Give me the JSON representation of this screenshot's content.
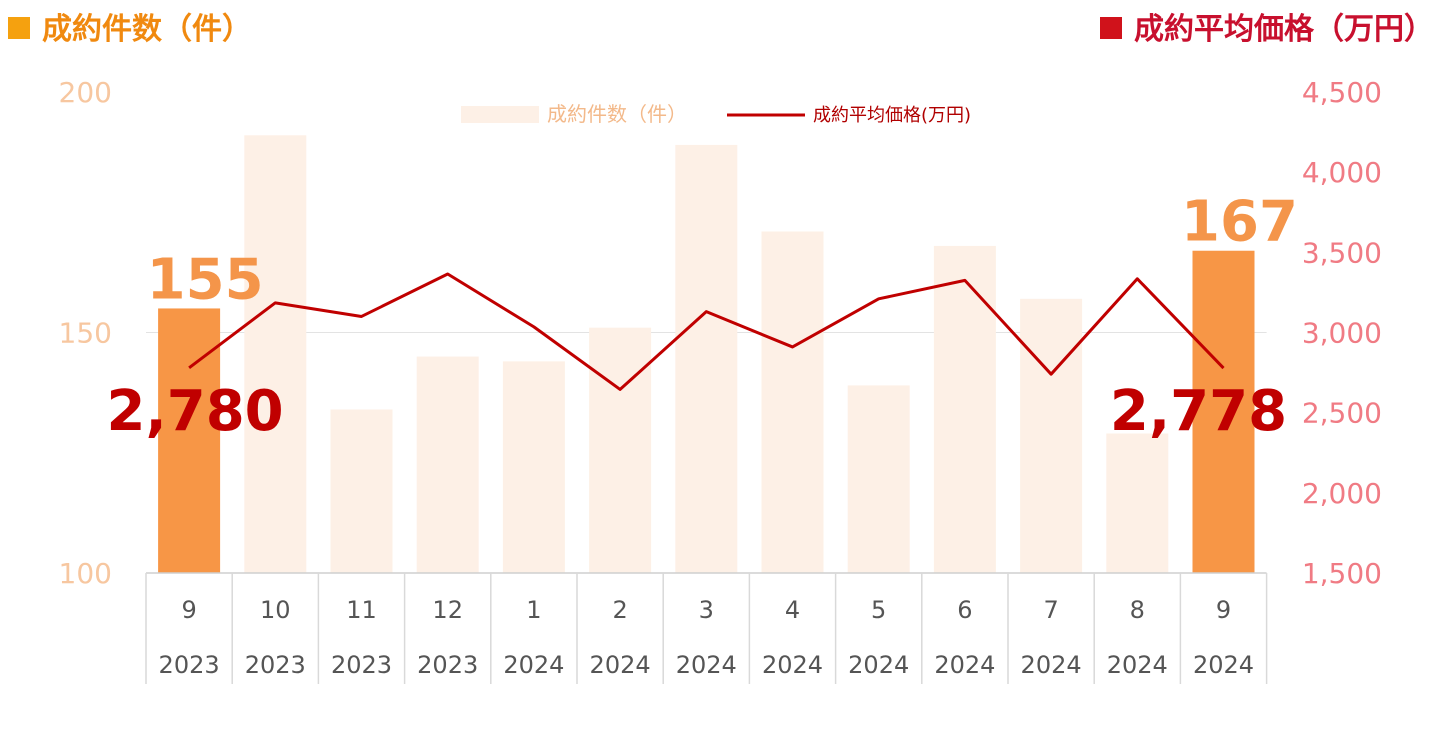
{
  "titles": {
    "left": "成約件数（件）",
    "right": "成約平均価格（万円）"
  },
  "colors": {
    "bar": "#fdf0e6",
    "bar_highlight": "#f79646",
    "line": "#c00000"
  },
  "chart_data": {
    "type": "bar",
    "categories": [
      {
        "month": "9",
        "year": "2023"
      },
      {
        "month": "10",
        "year": "2023"
      },
      {
        "month": "11",
        "year": "2023"
      },
      {
        "month": "12",
        "year": "2023"
      },
      {
        "month": "1",
        "year": "2024"
      },
      {
        "month": "2",
        "year": "2024"
      },
      {
        "month": "3",
        "year": "2024"
      },
      {
        "month": "4",
        "year": "2024"
      },
      {
        "month": "5",
        "year": "2024"
      },
      {
        "month": "6",
        "year": "2024"
      },
      {
        "month": "7",
        "year": "2024"
      },
      {
        "month": "8",
        "year": "2024"
      },
      {
        "month": "9",
        "year": "2024"
      }
    ],
    "series": [
      {
        "name": "成約件数（件）",
        "type": "bar",
        "axis": "left",
        "values": [
          155,
          191,
          134,
          145,
          144,
          151,
          189,
          171,
          139,
          168,
          157,
          129,
          167
        ],
        "highlight": [
          0,
          12
        ]
      },
      {
        "name": "成約平均価格(万円)",
        "type": "line",
        "axis": "right",
        "values": [
          2780,
          3185,
          3100,
          3365,
          3035,
          2645,
          3130,
          2910,
          3210,
          3325,
          2740,
          3335,
          2778
        ]
      }
    ],
    "left_axis": {
      "ticks": [
        "100",
        "150",
        "200"
      ],
      "range": [
        100,
        200
      ]
    },
    "right_axis": {
      "ticks": [
        "1,500",
        "2,000",
        "2,500",
        "3,000",
        "3,500",
        "4,000",
        "4,500"
      ],
      "range": [
        1500,
        4500
      ]
    },
    "gridlines": [
      150
    ],
    "legend": {
      "position": "top-center"
    },
    "annotations": [
      {
        "series": "bar",
        "index": 0,
        "text": "155"
      },
      {
        "series": "bar",
        "index": 12,
        "text": "167"
      },
      {
        "series": "line",
        "index": 0,
        "text": "2,780"
      },
      {
        "series": "line",
        "index": 12,
        "text": "2,778"
      }
    ]
  }
}
